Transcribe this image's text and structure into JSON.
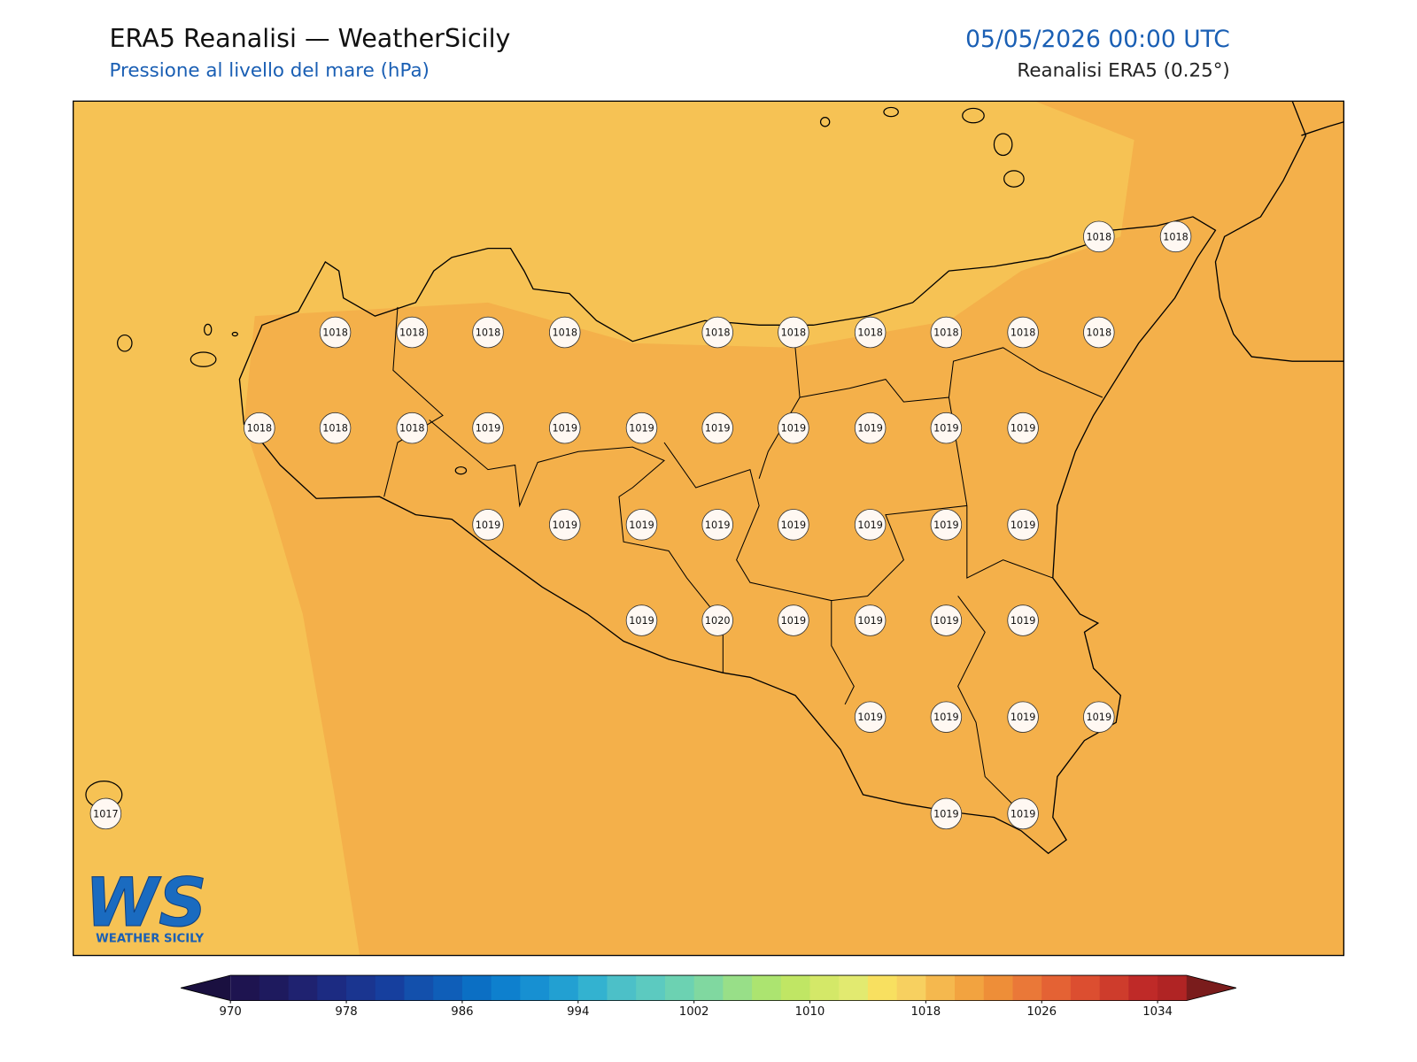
{
  "header": {
    "title": "ERA5 Reanalisi — WeatherSicily",
    "subtitle": "Pressione al livello del mare (hPa)",
    "datetime": "05/05/2026 00:00 UTC",
    "source": "Reanalisi ERA5 (0.25°)"
  },
  "map": {
    "stations": [
      1018,
      1018,
      1018,
      1018,
      1018,
      1018,
      1018,
      1018,
      1018,
      1018,
      1018,
      1018,
      1018,
      1018,
      1018,
      1019,
      1019,
      1019,
      1019,
      1019,
      1019,
      1019,
      1019,
      1019,
      1019,
      1019,
      1019,
      1019,
      1019,
      1019,
      1019,
      1019,
      1020,
      1019,
      1019,
      1019,
      1019,
      1019,
      1019,
      1019,
      1019,
      1017,
      1019,
      1019
    ]
  },
  "colorbar": {
    "lim": [
      970,
      1036
    ],
    "ticks": [
      970,
      978,
      986,
      994,
      1002,
      1010,
      1018,
      1026,
      1034
    ],
    "colors": [
      "#1e1450",
      "#1e1a5e",
      "#1f2270",
      "#1c2b82",
      "#1a3590",
      "#163f9e",
      "#1350ac",
      "#0f5eb8",
      "#0b6fc4",
      "#0e80ce",
      "#1790d2",
      "#22a0d2",
      "#33b2d0",
      "#4cc0c8",
      "#5ccac0",
      "#6cd2b2",
      "#80d8a0",
      "#98df88",
      "#ace470",
      "#c0e664",
      "#d4e868",
      "#e2ea70",
      "#f8e060",
      "#f7d060",
      "#f5b84e",
      "#f2a340",
      "#ee8e38",
      "#ea7838",
      "#e46234",
      "#dc4e30",
      "#ce3c2c",
      "#bf2a28",
      "#b02424"
    ],
    "under": "#1a1040",
    "over": "#7a1c1c"
  },
  "logo": {
    "mark": "WS",
    "text": "WEATHER SICILY"
  }
}
